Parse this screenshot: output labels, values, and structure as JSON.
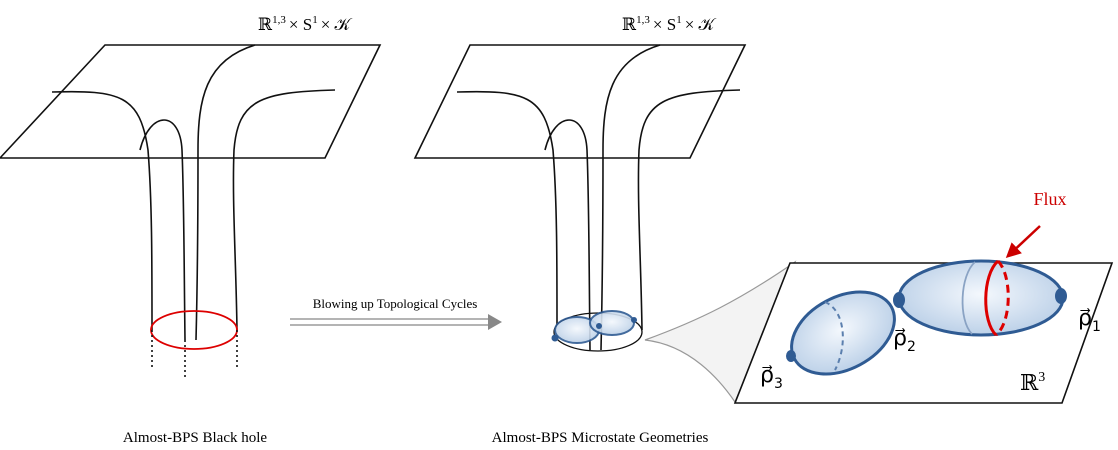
{
  "left_panel": {
    "spacetime_label": {
      "base": "ℝ",
      "sup1": "1,3",
      "mid": "× S",
      "sup2": "1",
      "end": "× 𝒦"
    },
    "caption": "Almost-BPS Black hole"
  },
  "transition": {
    "label": "Blowing up Topological Cycles"
  },
  "right_panel": {
    "spacetime_label": {
      "base": "ℝ",
      "sup1": "1,3",
      "mid": "× S",
      "sup2": "1",
      "end": "× 𝒦"
    },
    "caption": "Almost-BPS Microstate Geometries"
  },
  "inset": {
    "flux_label": "Flux",
    "base_space": {
      "base": "ℝ",
      "sup": "3"
    },
    "centers": [
      {
        "symbol": "ρ⃗",
        "sub": "1"
      },
      {
        "symbol": "ρ⃗",
        "sub": "2"
      },
      {
        "symbol": "ρ⃗",
        "sub": "3"
      }
    ]
  }
}
